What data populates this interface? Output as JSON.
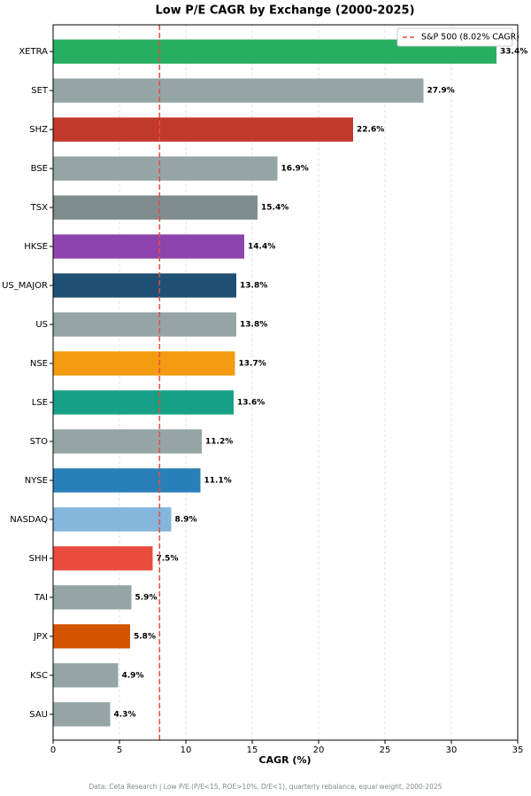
{
  "chart_data": {
    "type": "bar",
    "orientation": "horizontal",
    "title": "Low P/E CAGR by Exchange (2000-2025)",
    "xlabel": "CAGR (%)",
    "categories": [
      "XETRA",
      "SET",
      "SHZ",
      "BSE",
      "TSX",
      "HKSE",
      "US_MAJOR",
      "US",
      "NSE",
      "LSE",
      "STO",
      "NYSE",
      "NASDAQ",
      "SHH",
      "TAI",
      "JPX",
      "KSC",
      "SAU"
    ],
    "values": [
      33.4,
      27.9,
      22.6,
      16.9,
      15.4,
      14.4,
      13.8,
      13.8,
      13.7,
      13.6,
      11.2,
      11.1,
      8.9,
      7.5,
      5.9,
      5.8,
      4.9,
      4.3
    ],
    "value_labels": [
      "33.4%",
      "27.9%",
      "22.6%",
      "16.9%",
      "15.4%",
      "14.4%",
      "13.8%",
      "13.8%",
      "13.7%",
      "13.6%",
      "11.2%",
      "11.1%",
      "8.9%",
      "7.5%",
      "5.9%",
      "5.8%",
      "4.9%",
      "4.3%"
    ],
    "colors": [
      "#27ae60",
      "#95a5a6",
      "#c0392b",
      "#95a5a6",
      "#7f8c8d",
      "#8e44ad",
      "#1f5073",
      "#95a5a6",
      "#f39c12",
      "#16a085",
      "#95a5a6",
      "#2980b9",
      "#85b6db",
      "#e74c3c",
      "#95a5a6",
      "#d35400",
      "#95a5a6",
      "#95a5a6"
    ],
    "xlim": [
      0,
      35
    ],
    "xticks": [
      0,
      5,
      10,
      15,
      20,
      25,
      30,
      35
    ],
    "grid": true,
    "reference_line": {
      "value": 8.02,
      "label": "S&P 500 (8.02% CAGR)",
      "color": "#e74c3c"
    },
    "legend": "upper right",
    "note": "Data: Ceta Research | Low P/E (P/E<15, ROE>10%, D/E<1), quarterly rebalance, equal weight, 2000-2025"
  }
}
